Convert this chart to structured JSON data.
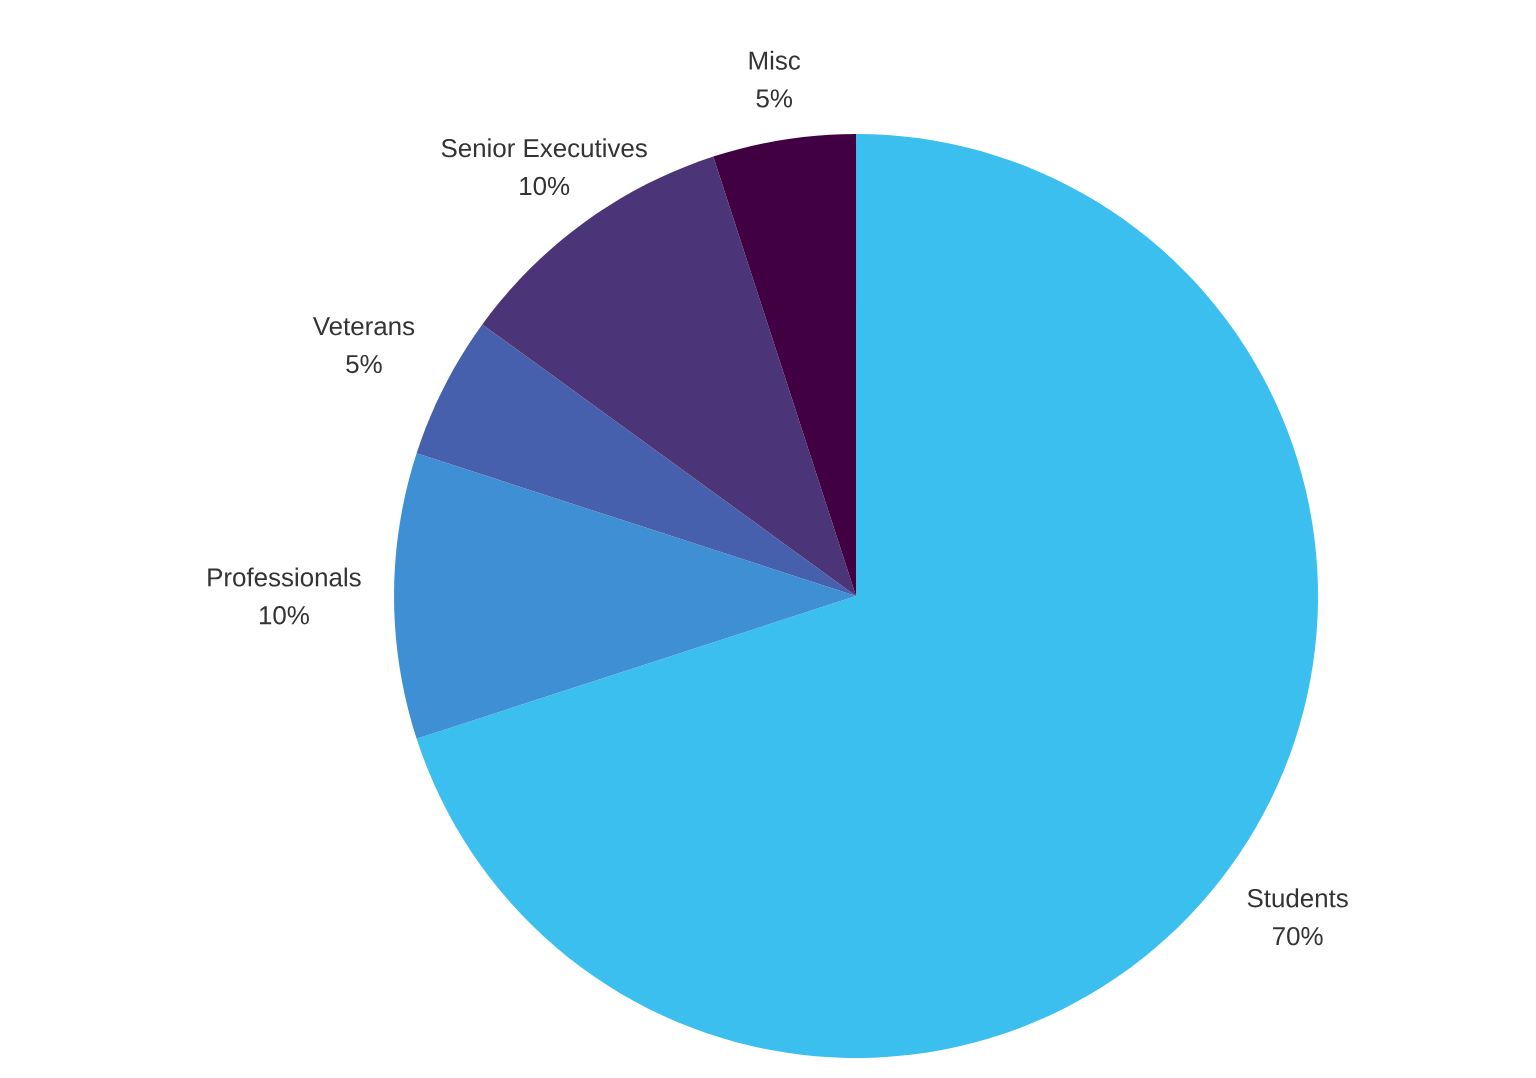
{
  "chart_data": {
    "type": "pie",
    "categories": [
      "Students",
      "Professionals",
      "Veterans",
      "Senior Executives",
      "Misc"
    ],
    "values": [
      70,
      10,
      5,
      10,
      5
    ],
    "colors": [
      "#3bbfef",
      "#3e8fd4",
      "#4660ae",
      "#4b3578",
      "#400042"
    ],
    "value_labels": [
      "70%",
      "10%",
      "5%",
      "10%",
      "5%"
    ]
  }
}
